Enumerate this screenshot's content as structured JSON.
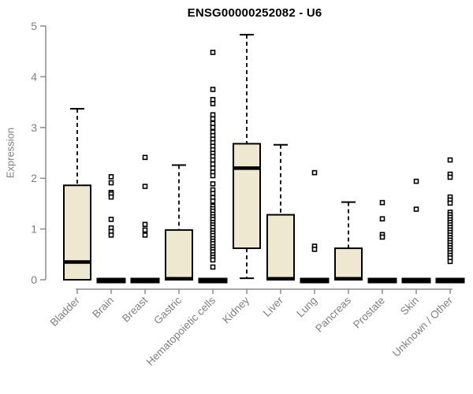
{
  "chart_data": {
    "type": "boxplot",
    "title": "ENSG00000252082 - U6",
    "ylabel": "Expression",
    "xlabel": "",
    "ylim": [
      0,
      5
    ],
    "yticks": [
      0,
      1,
      2,
      3,
      4,
      5
    ],
    "grid": false,
    "legend": "none",
    "categories": [
      "Bladder",
      "Brain",
      "Breast",
      "Gastric",
      "Hematopoietic cells",
      "Kidney",
      "Liver",
      "Lung",
      "Pancreas",
      "Prostate",
      "Skin",
      "Unknown / Other"
    ],
    "series": [
      {
        "name": "Bladder",
        "min": 0,
        "q1": 0,
        "median": 0.35,
        "q3": 1.86,
        "max": 3.37,
        "outliers": []
      },
      {
        "name": "Brain",
        "min": 0,
        "q1": 0,
        "median": 0,
        "q3": 0,
        "max": 0,
        "outliers": [
          2.03,
          1.91,
          1.72,
          1.69,
          1.63,
          1.19,
          1.02,
          0.95,
          0.88
        ]
      },
      {
        "name": "Breast",
        "min": 0,
        "q1": 0,
        "median": 0,
        "q3": 0,
        "max": 0,
        "outliers": [
          2.41,
          1.84,
          1.09,
          0.98,
          0.88
        ]
      },
      {
        "name": "Gastric",
        "min": 0,
        "q1": 0,
        "median": 0.02,
        "q3": 0.98,
        "max": 2.26,
        "outliers": []
      },
      {
        "name": "Hematopoietic cells",
        "min": 0,
        "q1": 0,
        "median": 0,
        "q3": 0,
        "max": 0,
        "outliers": [
          4.48,
          3.75,
          3.55,
          3.47,
          3.25,
          3.17,
          3.08,
          3.0,
          2.91,
          2.84,
          2.77,
          2.7,
          2.63,
          2.56,
          2.49,
          2.43,
          2.36,
          2.28,
          2.2,
          2.12,
          2.05,
          1.89,
          1.77,
          1.7,
          1.62,
          1.55,
          1.45,
          1.4,
          1.35,
          1.29,
          1.24,
          1.19,
          1.13,
          1.08,
          1.03,
          0.97,
          0.92,
          0.87,
          0.81,
          0.76,
          0.71,
          0.65,
          0.6,
          0.55,
          0.49,
          0.44,
          0.39,
          0.25
        ]
      },
      {
        "name": "Kidney",
        "min": 0.03,
        "q1": 0.62,
        "median": 2.2,
        "q3": 2.68,
        "max": 4.83,
        "outliers": []
      },
      {
        "name": "Liver",
        "min": 0,
        "q1": 0,
        "median": 0.02,
        "q3": 1.28,
        "max": 2.66,
        "outliers": []
      },
      {
        "name": "Lung",
        "min": 0,
        "q1": 0,
        "median": 0,
        "q3": 0,
        "max": 0,
        "outliers": [
          2.11,
          0.66,
          0.6
        ]
      },
      {
        "name": "Pancreas",
        "min": 0,
        "q1": 0,
        "median": 0.02,
        "q3": 0.62,
        "max": 1.53,
        "outliers": []
      },
      {
        "name": "Prostate",
        "min": 0,
        "q1": 0,
        "median": 0,
        "q3": 0,
        "max": 0,
        "outliers": [
          1.52,
          1.2,
          0.89,
          0.84
        ]
      },
      {
        "name": "Skin",
        "min": 0,
        "q1": 0,
        "median": 0,
        "q3": 0,
        "max": 0,
        "outliers": [
          1.94,
          1.39
        ]
      },
      {
        "name": "Unknown / Other",
        "min": 0,
        "q1": 0,
        "median": 0,
        "q3": 0,
        "max": 0,
        "outliers": [
          2.36,
          2.08,
          2.02,
          1.63,
          1.57,
          1.51,
          1.33,
          1.28,
          1.23,
          1.18,
          1.13,
          1.08,
          1.03,
          0.98,
          0.93,
          0.88,
          0.83,
          0.78,
          0.73,
          0.68,
          0.63,
          0.58,
          0.53,
          0.48,
          0.43,
          0.36
        ]
      }
    ],
    "colors": {
      "box_fill": "#EDE8CF",
      "box_stroke": "#000000",
      "median": "#000000",
      "whisker": "#000000",
      "outlier_stroke": "#000000",
      "outlier_fill": "#FFFFFF",
      "axis": "#8C8C8C",
      "tick_label": "#7F7F7F",
      "title": "#000000",
      "background": "#FFFFFF"
    }
  }
}
